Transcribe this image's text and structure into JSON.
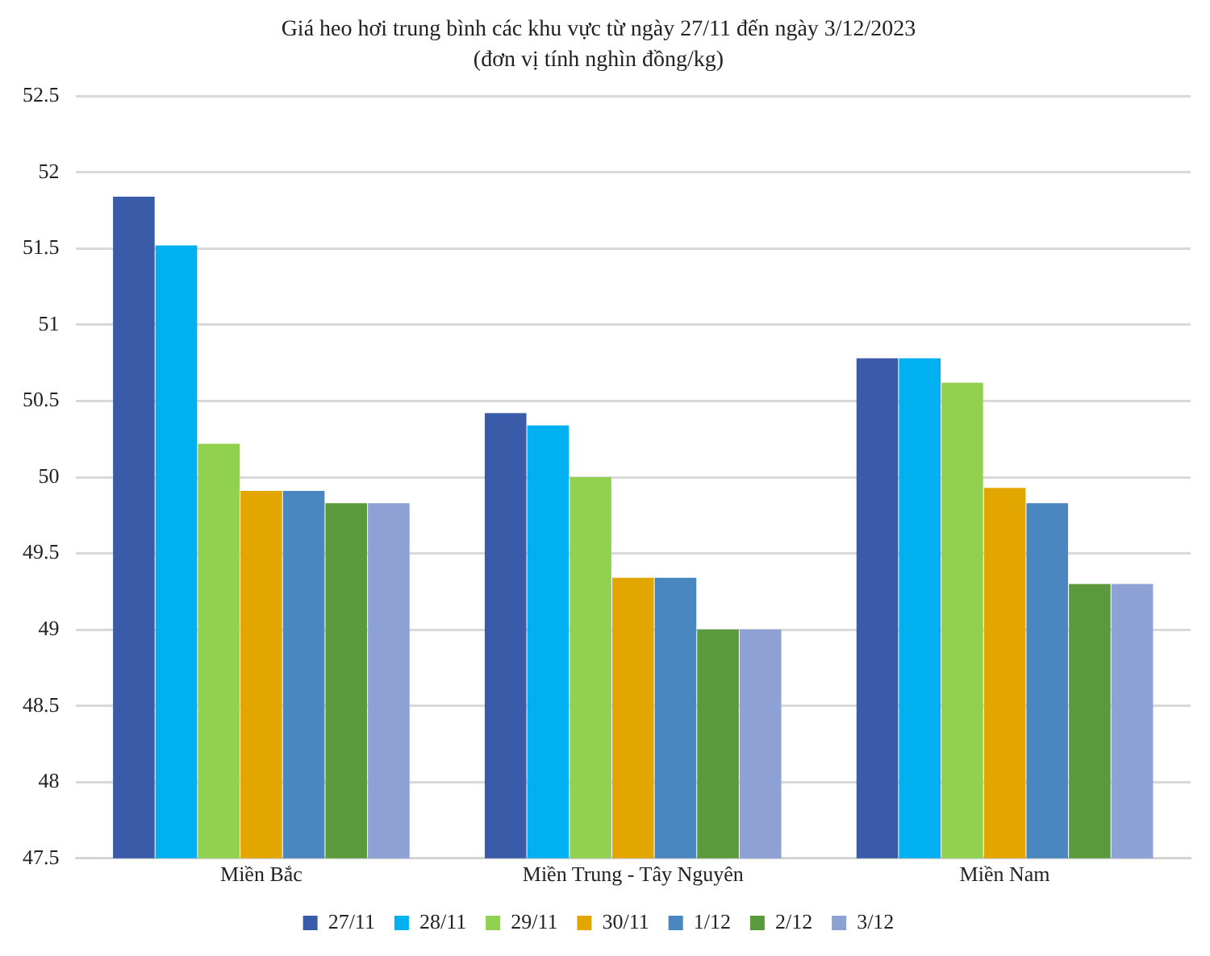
{
  "chart_data": {
    "type": "bar",
    "title": "Giá heo hơi trung bình các khu vực từ ngày 27/11 đến ngày 3/12/2023",
    "subtitle": "(đơn vị tính nghìn đồng/kg)",
    "categories": [
      "Miền Bắc",
      "Miền Trung - Tây Nguyên",
      "Miền Nam"
    ],
    "series": [
      {
        "name": "27/11",
        "color": "#3a5ba8",
        "values": [
          51.84,
          50.42,
          50.78
        ]
      },
      {
        "name": "28/11",
        "color": "#00b0f0",
        "values": [
          51.52,
          50.34,
          50.78
        ]
      },
      {
        "name": "29/11",
        "color": "#92d050",
        "values": [
          50.22,
          50.0,
          50.62
        ]
      },
      {
        "name": "30/11",
        "color": "#e3a600",
        "values": [
          49.91,
          49.34,
          49.93
        ]
      },
      {
        "name": "1/12",
        "color": "#4a86bf",
        "values": [
          49.91,
          49.34,
          49.83
        ]
      },
      {
        "name": "2/12",
        "color": "#5b9a3c",
        "values": [
          49.83,
          49.0,
          49.3
        ]
      },
      {
        "name": "3/12",
        "color": "#8ea1d4",
        "values": [
          49.83,
          49.0,
          49.3
        ]
      }
    ],
    "ylim": [
      47.5,
      52.5
    ],
    "yticks": [
      47.5,
      48,
      48.5,
      49,
      49.5,
      50,
      50.5,
      51,
      51.5,
      52,
      52.5
    ],
    "grid": "y",
    "legend": "bottom"
  }
}
